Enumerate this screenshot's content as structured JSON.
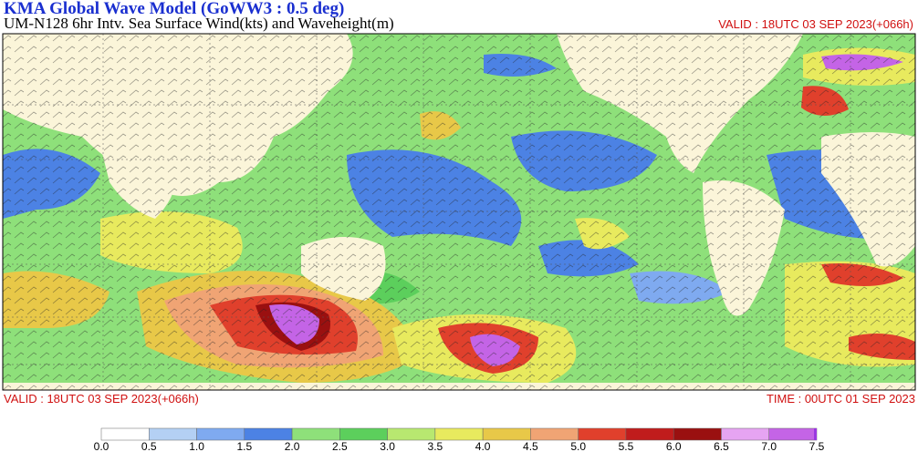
{
  "header": {
    "title": "KMA  Global Wave Model (GoWW3 : 0.5 deg)",
    "subtitle": "UM-N128  6hr Intv. Sea Surface Wind(kts) and Waveheight(m)",
    "valid_top": "VALID : 18UTC 03 SEP 2023(+066h)"
  },
  "footer": {
    "valid": "VALID : 18UTC 03 SEP 2023(+066h)",
    "time": "TIME : 00UTC 01 SEP 2023"
  },
  "legend": {
    "labels": [
      "0.0",
      "0.5",
      "1.0",
      "1.5",
      "2.0",
      "2.5",
      "3.0",
      "3.5",
      "4.0",
      "4.5",
      "5.0",
      "5.5",
      "6.0",
      "6.5",
      "7.0",
      "7.5"
    ],
    "colors": [
      "#ffffff",
      "#b4d0f4",
      "#7faaf0",
      "#4c82e4",
      "#8ee07a",
      "#5ccf5c",
      "#b8e870",
      "#e8ea5e",
      "#e8c848",
      "#f0a474",
      "#e0402c",
      "#c01c1c",
      "#9a1010",
      "#e6a4f2",
      "#c464e6",
      "#9a38e0"
    ]
  }
}
